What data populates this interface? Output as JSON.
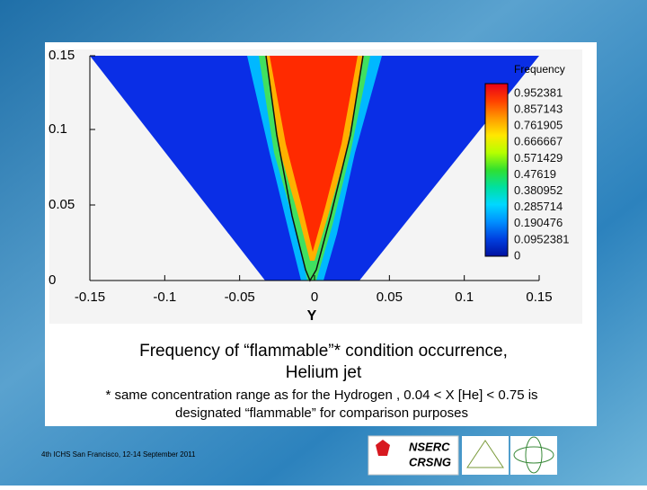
{
  "figure": {
    "y_ticks": [
      "0",
      "0.05",
      "0.1",
      "0.15"
    ],
    "x_ticks": [
      "-0.15",
      "-0.1",
      "-0.05",
      "0",
      "0.05",
      "0.1",
      "0.15"
    ],
    "x_axis_label": "Y",
    "legend": {
      "title": "Frequency",
      "levels": [
        "0.952381",
        "0.857143",
        "0.761905",
        "0.666667",
        "0.571429",
        "0.47619",
        "0.380952",
        "0.285714",
        "0.190476",
        "0.0952381",
        "0"
      ]
    }
  },
  "caption": {
    "line1": "Frequency of “flammable”* condition occurrence,",
    "line2": "Helium jet",
    "note1": "* same concentration range as for the Hydrogen , 0.04 < X [He] < 0.75 is",
    "note2": "designated “flammable” for comparison purposes"
  },
  "footer": {
    "text": "4th ICHS  San Francisco, 12-14 September 2011",
    "logo1_top": "NSERC",
    "logo1_bottom": "CRSNG"
  }
}
